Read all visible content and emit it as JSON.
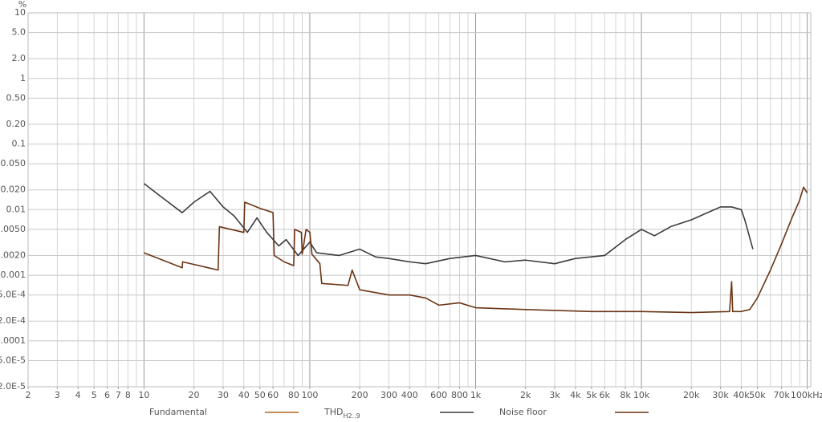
{
  "chart_data": {
    "type": "line",
    "ylabel": "%",
    "log_x": true,
    "log_y": true,
    "grid": true,
    "xlim": [
      2,
      105000
    ],
    "ylim": [
      2e-05,
      10
    ],
    "xticks": [
      2,
      3,
      4,
      5,
      6,
      7,
      8,
      10,
      20,
      30,
      40,
      50,
      60,
      80,
      100,
      200,
      300,
      400,
      600,
      800,
      {
        "value": 1000,
        "label": "1k"
      },
      {
        "value": 2000,
        "label": "2k"
      },
      {
        "value": 3000,
        "label": "3k"
      },
      {
        "value": 4000,
        "label": "4k"
      },
      {
        "value": 5000,
        "label": "5k"
      },
      {
        "value": 6000,
        "label": "6k"
      },
      {
        "value": 8000,
        "label": "8k"
      },
      {
        "value": 10000,
        "label": "10k"
      },
      {
        "value": 20000,
        "label": "20k"
      },
      {
        "value": 30000,
        "label": "30k"
      },
      {
        "value": 40000,
        "label": "40k"
      },
      {
        "value": 50000,
        "label": "50k"
      },
      {
        "value": 70000,
        "label": "70k"
      },
      {
        "value": 100000,
        "label": "100kHz"
      }
    ],
    "yticks": [
      10,
      {
        "value": 5,
        "label": "5.0"
      },
      {
        "value": 2,
        "label": "2.0"
      },
      1,
      {
        "value": 0.5,
        "label": "0.50"
      },
      {
        "value": 0.2,
        "label": "0.20"
      },
      0.1,
      {
        "value": 0.05,
        "label": "0.050"
      },
      {
        "value": 0.02,
        "label": "0.020"
      },
      0.01,
      {
        "value": 0.005,
        "label": "0.0050"
      },
      {
        "value": 0.002,
        "label": "0.0020"
      },
      0.001,
      {
        "value": 0.0005,
        "label": "5.0E-4"
      },
      {
        "value": 0.0002,
        "label": "2.0E-4"
      },
      0.0001,
      {
        "value": 5e-05,
        "label": "5.0E-5"
      },
      {
        "value": 2e-05,
        "label": "2.0E-5"
      }
    ],
    "series": [
      {
        "name": "Fundamental",
        "color": "#b5651d"
      },
      {
        "name": "THD",
        "subscript": "H2..9",
        "color": "#3c3c3c",
        "x": [
          10,
          13,
          17,
          20,
          25,
          30,
          35,
          42,
          48,
          55,
          65,
          72,
          85,
          100,
          110,
          150,
          200,
          250,
          300,
          400,
          500,
          700,
          1000,
          1500,
          2000,
          3000,
          4000,
          6000,
          8000,
          10000,
          12000,
          15000,
          20000,
          30000,
          35000,
          40000,
          42000,
          47000
        ],
        "values": [
          0.025,
          0.015,
          0.009,
          0.013,
          0.019,
          0.011,
          0.008,
          0.0045,
          0.0075,
          0.0045,
          0.0028,
          0.0035,
          0.002,
          0.0032,
          0.0022,
          0.002,
          0.0025,
          0.0019,
          0.0018,
          0.0016,
          0.0015,
          0.0018,
          0.002,
          0.0016,
          0.0017,
          0.0015,
          0.0018,
          0.002,
          0.0035,
          0.005,
          0.004,
          0.0055,
          0.007,
          0.011,
          0.011,
          0.01,
          0.007,
          0.0025
        ]
      },
      {
        "name": "Noise floor",
        "color": "#6b3414",
        "x": [
          10,
          17,
          17.1,
          28,
          28.5,
          40,
          40.5,
          50,
          60,
          61,
          70,
          80,
          81,
          89,
          90,
          95,
          100,
          103,
          115,
          118,
          170,
          180,
          200,
          300,
          400,
          500,
          600,
          800,
          1000,
          2000,
          5000,
          10000,
          20000,
          34000,
          35000,
          35500,
          40000,
          45000,
          50000,
          60000,
          70000,
          80000,
          90000,
          95000,
          100000
        ],
        "values": [
          0.0022,
          0.0013,
          0.0016,
          0.0012,
          0.0055,
          0.0045,
          0.013,
          0.0105,
          0.009,
          0.002,
          0.0016,
          0.0014,
          0.005,
          0.0045,
          0.0021,
          0.005,
          0.0045,
          0.0021,
          0.0015,
          0.00075,
          0.0007,
          0.0012,
          0.0006,
          0.0005,
          0.0005,
          0.00045,
          0.00035,
          0.00038,
          0.00032,
          0.0003,
          0.00028,
          0.00028,
          0.00027,
          0.00028,
          0.0008,
          0.00028,
          0.00028,
          0.0003,
          0.00045,
          0.0012,
          0.003,
          0.007,
          0.014,
          0.022,
          0.018
        ]
      }
    ]
  }
}
